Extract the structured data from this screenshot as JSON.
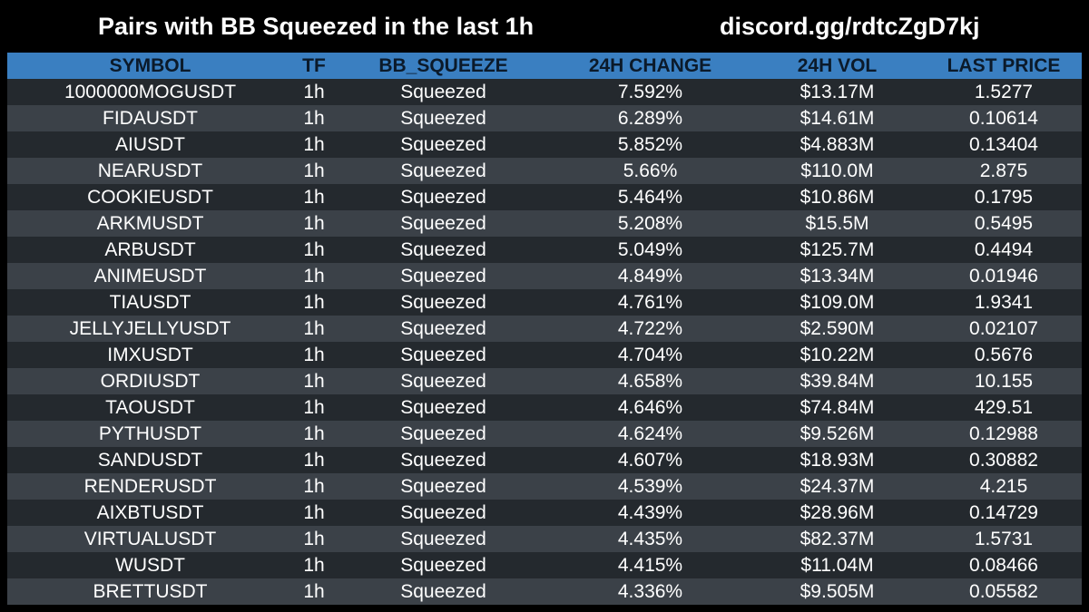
{
  "header": {
    "title": "Pairs with BB Squeezed in the last 1h",
    "invite": "discord.gg/rdtcZgD7kj"
  },
  "table": {
    "columns": [
      "SYMBOL",
      "TF",
      "BB_SQUEEZE",
      "24H CHANGE",
      "24H VOL",
      "LAST PRICE"
    ],
    "rows": [
      [
        "1000000MOGUSDT",
        "1h",
        "Squeezed",
        "7.592%",
        "$13.17M",
        "1.5277"
      ],
      [
        "FIDAUSDT",
        "1h",
        "Squeezed",
        "6.289%",
        "$14.61M",
        "0.10614"
      ],
      [
        "AIUSDT",
        "1h",
        "Squeezed",
        "5.852%",
        "$4.883M",
        "0.13404"
      ],
      [
        "NEARUSDT",
        "1h",
        "Squeezed",
        "5.66%",
        "$110.0M",
        "2.875"
      ],
      [
        "COOKIEUSDT",
        "1h",
        "Squeezed",
        "5.464%",
        "$10.86M",
        "0.1795"
      ],
      [
        "ARKMUSDT",
        "1h",
        "Squeezed",
        "5.208%",
        "$15.5M",
        "0.5495"
      ],
      [
        "ARBUSDT",
        "1h",
        "Squeezed",
        "5.049%",
        "$125.7M",
        "0.4494"
      ],
      [
        "ANIMEUSDT",
        "1h",
        "Squeezed",
        "4.849%",
        "$13.34M",
        "0.01946"
      ],
      [
        "TIAUSDT",
        "1h",
        "Squeezed",
        "4.761%",
        "$109.0M",
        "1.9341"
      ],
      [
        "JELLYJELLYUSDT",
        "1h",
        "Squeezed",
        "4.722%",
        "$2.590M",
        "0.02107"
      ],
      [
        "IMXUSDT",
        "1h",
        "Squeezed",
        "4.704%",
        "$10.22M",
        "0.5676"
      ],
      [
        "ORDIUSDT",
        "1h",
        "Squeezed",
        "4.658%",
        "$39.84M",
        "10.155"
      ],
      [
        "TAOUSDT",
        "1h",
        "Squeezed",
        "4.646%",
        "$74.84M",
        "429.51"
      ],
      [
        "PYTHUSDT",
        "1h",
        "Squeezed",
        "4.624%",
        "$9.526M",
        "0.12988"
      ],
      [
        "SANDUSDT",
        "1h",
        "Squeezed",
        "4.607%",
        "$18.93M",
        "0.30882"
      ],
      [
        "RENDERUSDT",
        "1h",
        "Squeezed",
        "4.539%",
        "$24.37M",
        "4.215"
      ],
      [
        "AIXBTUSDT",
        "1h",
        "Squeezed",
        "4.439%",
        "$28.96M",
        "0.14729"
      ],
      [
        "VIRTUALUSDT",
        "1h",
        "Squeezed",
        "4.435%",
        "$82.37M",
        "1.5731"
      ],
      [
        "WUSDT",
        "1h",
        "Squeezed",
        "4.415%",
        "$11.04M",
        "0.08466"
      ],
      [
        "BRETTUSDT",
        "1h",
        "Squeezed",
        "4.336%",
        "$9.505M",
        "0.05582"
      ]
    ]
  },
  "colors": {
    "background": "#000000",
    "header_row": "#3a7fc1",
    "row_dark": "#24292e",
    "row_light": "#3b4148",
    "text": "#ffffff",
    "header_text": "#0b1a2a"
  }
}
